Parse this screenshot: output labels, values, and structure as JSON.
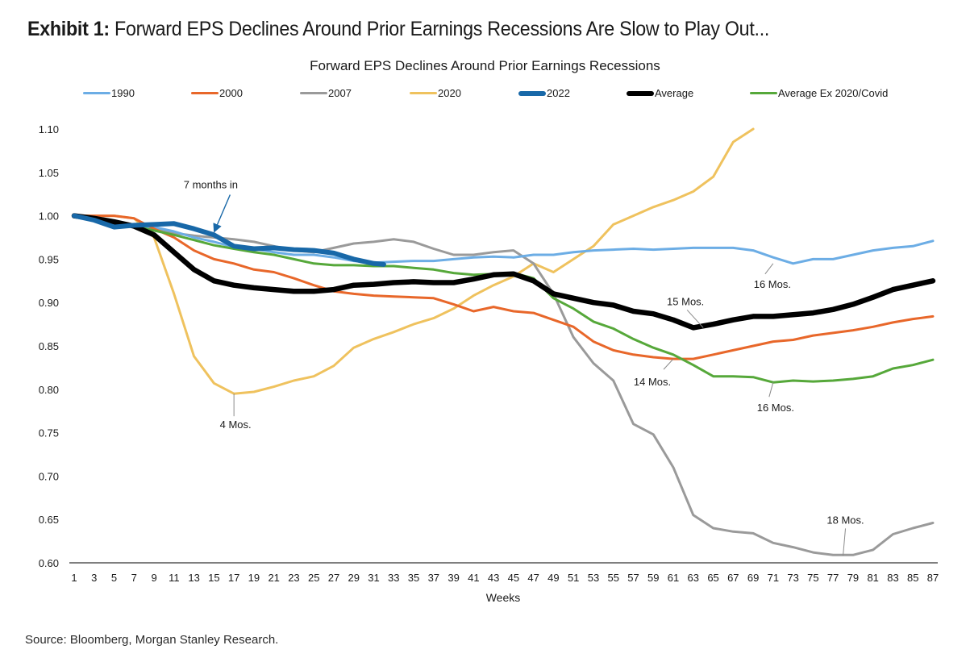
{
  "exhibit": {
    "label": "Exhibit 1:",
    "title": "Forward EPS Declines Around Prior Earnings Recessions Are Slow to Play Out..."
  },
  "source": "Source: Bloomberg, Morgan Stanley Research.",
  "chart_data": {
    "type": "line",
    "title": "Forward EPS Declines Around Prior Earnings Recessions",
    "xlabel": "Weeks",
    "ylabel": "",
    "xlim": [
      1,
      87
    ],
    "ylim": [
      0.6,
      1.1
    ],
    "yticks": [
      "1.10",
      "1.05",
      "1.00",
      "0.95",
      "0.90",
      "0.85",
      "0.80",
      "0.75",
      "0.70",
      "0.65",
      "0.60"
    ],
    "xticks": [
      "1",
      "3",
      "5",
      "7",
      "9",
      "11",
      "13",
      "15",
      "17",
      "19",
      "21",
      "23",
      "25",
      "27",
      "29",
      "31",
      "33",
      "35",
      "37",
      "39",
      "41",
      "43",
      "45",
      "47",
      "49",
      "51",
      "53",
      "55",
      "57",
      "59",
      "61",
      "63",
      "65",
      "67",
      "69",
      "71",
      "73",
      "75",
      "77",
      "79",
      "81",
      "83",
      "85",
      "87"
    ],
    "grid": false,
    "legend_position": "top",
    "x_step": "odd weeks 1..87 (values given every 2 weeks)",
    "series": [
      {
        "name": "1990",
        "color": "#6CADE5",
        "weight": "thin",
        "x": [
          1,
          3,
          5,
          7,
          9,
          11,
          13,
          15,
          17,
          19,
          21,
          23,
          25,
          27,
          29,
          31,
          33,
          35,
          37,
          39,
          41,
          43,
          45,
          47,
          49,
          51,
          53,
          55,
          57,
          59,
          61,
          63,
          65,
          67,
          69,
          71,
          73,
          75,
          77,
          79,
          81,
          83,
          85,
          87
        ],
        "values": [
          1.0,
          0.994,
          0.989,
          0.988,
          0.987,
          0.982,
          0.975,
          0.97,
          0.964,
          0.962,
          0.958,
          0.955,
          0.955,
          0.952,
          0.948,
          0.946,
          0.947,
          0.948,
          0.948,
          0.95,
          0.952,
          0.953,
          0.952,
          0.955,
          0.955,
          0.958,
          0.96,
          0.961,
          0.962,
          0.961,
          0.962,
          0.963,
          0.963,
          0.963,
          0.96,
          0.952,
          0.945,
          0.95,
          0.95,
          0.955,
          0.96,
          0.963,
          0.965,
          0.971
        ]
      },
      {
        "name": "2000",
        "color": "#E8672A",
        "weight": "thin",
        "x": [
          1,
          3,
          5,
          7,
          9,
          11,
          13,
          15,
          17,
          19,
          21,
          23,
          25,
          27,
          29,
          31,
          33,
          35,
          37,
          39,
          41,
          43,
          45,
          47,
          49,
          51,
          53,
          55,
          57,
          59,
          61,
          63,
          65,
          67,
          69,
          71,
          73,
          75,
          77,
          79,
          81,
          83,
          85,
          87
        ],
        "values": [
          1.0,
          1.0,
          1.0,
          0.997,
          0.985,
          0.975,
          0.96,
          0.95,
          0.945,
          0.938,
          0.935,
          0.928,
          0.92,
          0.913,
          0.91,
          0.908,
          0.907,
          0.906,
          0.905,
          0.898,
          0.89,
          0.895,
          0.89,
          0.888,
          0.88,
          0.872,
          0.855,
          0.845,
          0.84,
          0.837,
          0.835,
          0.835,
          0.84,
          0.845,
          0.85,
          0.855,
          0.857,
          0.862,
          0.865,
          0.868,
          0.872,
          0.877,
          0.881,
          0.884
        ]
      },
      {
        "name": "2007",
        "color": "#9A9A9A",
        "weight": "thin",
        "x": [
          1,
          3,
          5,
          7,
          9,
          11,
          13,
          15,
          17,
          19,
          21,
          23,
          25,
          27,
          29,
          31,
          33,
          35,
          37,
          39,
          41,
          43,
          45,
          47,
          49,
          51,
          53,
          55,
          57,
          59,
          61,
          63,
          65,
          67,
          69,
          71,
          73,
          75,
          77,
          79,
          81,
          83,
          85,
          87
        ],
        "values": [
          1.0,
          0.997,
          0.993,
          0.99,
          0.985,
          0.98,
          0.977,
          0.975,
          0.973,
          0.97,
          0.965,
          0.96,
          0.958,
          0.963,
          0.968,
          0.97,
          0.973,
          0.97,
          0.962,
          0.955,
          0.955,
          0.958,
          0.96,
          0.945,
          0.91,
          0.86,
          0.83,
          0.81,
          0.76,
          0.748,
          0.71,
          0.655,
          0.64,
          0.636,
          0.634,
          0.623,
          0.618,
          0.612,
          0.609,
          0.609,
          0.615,
          0.633,
          0.64,
          0.646
        ]
      },
      {
        "name": "2020",
        "color": "#EFC25E",
        "weight": "thin",
        "x": [
          1,
          3,
          5,
          7,
          9,
          11,
          13,
          15,
          17,
          19,
          21,
          23,
          25,
          27,
          29,
          31,
          33,
          35,
          37,
          39,
          41,
          43,
          45,
          47,
          49,
          51,
          53,
          55,
          57,
          59,
          61,
          63,
          65,
          67,
          69
        ],
        "values": [
          1.0,
          1.0,
          1.0,
          0.997,
          0.975,
          0.91,
          0.838,
          0.807,
          0.795,
          0.797,
          0.803,
          0.81,
          0.815,
          0.827,
          0.848,
          0.858,
          0.866,
          0.875,
          0.882,
          0.893,
          0.908,
          0.92,
          0.93,
          0.945,
          0.935,
          0.95,
          0.965,
          0.99,
          1.0,
          1.01,
          1.018,
          1.028,
          1.045,
          1.085,
          1.1
        ]
      },
      {
        "name": "2022",
        "color": "#1868A8",
        "weight": "thick",
        "x": [
          1,
          3,
          5,
          7,
          9,
          11,
          13,
          15,
          17,
          19,
          21,
          23,
          25,
          27,
          29,
          31,
          32
        ],
        "values": [
          1.0,
          0.995,
          0.987,
          0.989,
          0.99,
          0.991,
          0.985,
          0.978,
          0.965,
          0.962,
          0.963,
          0.961,
          0.96,
          0.957,
          0.95,
          0.945,
          0.944
        ]
      },
      {
        "name": "Average",
        "color": "#000000",
        "weight": "thickest",
        "x": [
          1,
          3,
          5,
          7,
          9,
          11,
          13,
          15,
          17,
          19,
          21,
          23,
          25,
          27,
          29,
          31,
          33,
          35,
          37,
          39,
          41,
          43,
          45,
          47,
          49,
          51,
          53,
          55,
          57,
          59,
          61,
          63,
          65,
          67,
          69,
          71,
          73,
          75,
          77,
          79,
          81,
          83,
          85,
          87
        ],
        "values": [
          1.0,
          0.997,
          0.993,
          0.988,
          0.978,
          0.958,
          0.938,
          0.925,
          0.92,
          0.917,
          0.915,
          0.913,
          0.913,
          0.915,
          0.92,
          0.921,
          0.923,
          0.924,
          0.923,
          0.923,
          0.927,
          0.932,
          0.933,
          0.925,
          0.91,
          0.905,
          0.9,
          0.897,
          0.89,
          0.887,
          0.88,
          0.871,
          0.875,
          0.88,
          0.884,
          0.884,
          0.886,
          0.888,
          0.892,
          0.898,
          0.906,
          0.915,
          0.92,
          0.925
        ]
      },
      {
        "name": "Average Ex 2020/Covid",
        "color": "#56A83A",
        "weight": "thin",
        "x": [
          1,
          3,
          5,
          7,
          9,
          11,
          13,
          15,
          17,
          19,
          21,
          23,
          25,
          27,
          29,
          31,
          33,
          35,
          37,
          39,
          41,
          43,
          45,
          47,
          49,
          51,
          53,
          55,
          57,
          59,
          61,
          63,
          65,
          67,
          69,
          71,
          73,
          75,
          77,
          79,
          81,
          83,
          85,
          87
        ],
        "values": [
          1.0,
          0.997,
          0.993,
          0.988,
          0.983,
          0.978,
          0.972,
          0.966,
          0.962,
          0.958,
          0.955,
          0.95,
          0.945,
          0.943,
          0.943,
          0.942,
          0.942,
          0.94,
          0.938,
          0.934,
          0.932,
          0.933,
          0.934,
          0.928,
          0.905,
          0.893,
          0.878,
          0.87,
          0.858,
          0.848,
          0.84,
          0.828,
          0.815,
          0.815,
          0.814,
          0.808,
          0.81,
          0.809,
          0.81,
          0.812,
          0.815,
          0.824,
          0.828,
          0.834
        ]
      }
    ],
    "annotations": [
      {
        "text": "7 months in",
        "points_to_week": 15,
        "points_to_value": 0.975,
        "style": "arrow",
        "series": "2022"
      },
      {
        "text": "4 Mos.",
        "week": 17,
        "value": 0.795,
        "series": "2020"
      },
      {
        "text": "16 Mos.",
        "week": 71,
        "value": 0.945,
        "series": "1990"
      },
      {
        "text": "15 Mos.",
        "week": 64,
        "value": 0.871,
        "series": "Average"
      },
      {
        "text": "14 Mos.",
        "week": 61,
        "value": 0.835,
        "series": "2000"
      },
      {
        "text": "16 Mos.",
        "week": 71,
        "value": 0.808,
        "series": "Average Ex 2020/Covid"
      },
      {
        "text": "18 Mos.",
        "week": 78,
        "value": 0.608,
        "series": "2007"
      }
    ]
  }
}
